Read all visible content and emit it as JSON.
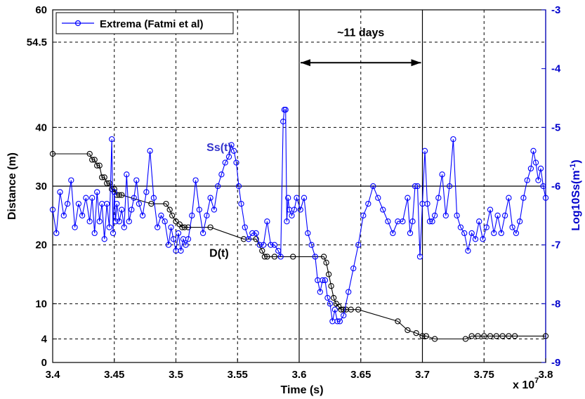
{
  "chart_data": {
    "type": "line",
    "xlabel": "Time (s)",
    "x_multiplier": "x 10",
    "x_multiplier_exp": "7",
    "ylabel": "Distance (m)",
    "y2label": "Log10Ss(m",
    "y2label_sup": "-1",
    "y2label_close": ")",
    "xlim": [
      3.4,
      3.8
    ],
    "ylim": [
      0,
      60
    ],
    "y2lim": [
      -9,
      -3
    ],
    "x_ticks": [
      "3.4",
      "3.45",
      "3.5",
      "3.55",
      "3.6",
      "3.65",
      "3.7",
      "3.75",
      "3.8"
    ],
    "y_ticks": [
      0,
      4,
      10,
      20,
      30,
      40,
      54.5,
      60
    ],
    "y_tick_labels": [
      "0",
      "4",
      "10",
      "20",
      "30",
      "40",
      "54.5",
      "60"
    ],
    "y2_ticks": [
      -9,
      -8,
      -7,
      -6,
      -5,
      -4,
      -3
    ],
    "y2_tick_labels": [
      "-9",
      "-8",
      "-7",
      "-6",
      "-5",
      "-4",
      "-3"
    ],
    "grid": true,
    "legend": {
      "position": "top-left",
      "entries": [
        "Extrema (Fatmi et al)"
      ]
    },
    "vertical_lines_x": [
      3.6,
      3.7
    ],
    "horizontal_line_y": 30,
    "annotations": {
      "interval_label": "~11 days",
      "interval_from": 3.6,
      "interval_to": 3.7,
      "interval_y": 51,
      "ss_label": "Ss(t)",
      "ss_label_at": [
        3.535,
        36
      ],
      "d_label": "D(t)",
      "d_label_at": [
        3.535,
        18
      ]
    },
    "colors": {
      "ss": "#0000ff",
      "d": "#000000",
      "arrow": "#000000"
    },
    "series": [
      {
        "name": "Extrema (Fatmi et al)",
        "axis": "right",
        "x": [
          3.4,
          3.403,
          3.406,
          3.409,
          3.412,
          3.415,
          3.418,
          3.421,
          3.424,
          3.427,
          3.43,
          3.432,
          3.434,
          3.436,
          3.438,
          3.44,
          3.442,
          3.444,
          3.446,
          3.448,
          3.449,
          3.45,
          3.451,
          3.452,
          3.454,
          3.456,
          3.458,
          3.46,
          3.462,
          3.464,
          3.466,
          3.468,
          3.47,
          3.473,
          3.476,
          3.479,
          3.482,
          3.485,
          3.488,
          3.491,
          3.494,
          3.496,
          3.498,
          3.5,
          3.502,
          3.504,
          3.506,
          3.508,
          3.51,
          3.513,
          3.516,
          3.519,
          3.522,
          3.525,
          3.528,
          3.531,
          3.534,
          3.537,
          3.54,
          3.543,
          3.545,
          3.547,
          3.549,
          3.551,
          3.553,
          3.556,
          3.559,
          3.562,
          3.565,
          3.568,
          3.571,
          3.574,
          3.577,
          3.58,
          3.583,
          3.585,
          3.587,
          3.588,
          3.589,
          3.59,
          3.591,
          3.592,
          3.594,
          3.596,
          3.598,
          3.601,
          3.604,
          3.607,
          3.61,
          3.613,
          3.615,
          3.617,
          3.619,
          3.621,
          3.623,
          3.625,
          3.627,
          3.629,
          3.631,
          3.633,
          3.636,
          3.64,
          3.644,
          3.648,
          3.652,
          3.656,
          3.66,
          3.664,
          3.668,
          3.672,
          3.676,
          3.68,
          3.684,
          3.688,
          3.69,
          3.692,
          3.694,
          3.696,
          3.698,
          3.7,
          3.702,
          3.704,
          3.706,
          3.708,
          3.71,
          3.713,
          3.716,
          3.719,
          3.722,
          3.725,
          3.728,
          3.731,
          3.734,
          3.737,
          3.74,
          3.743,
          3.746,
          3.749,
          3.752,
          3.755,
          3.758,
          3.761,
          3.764,
          3.767,
          3.77,
          3.773,
          3.776,
          3.779,
          3.782,
          3.785,
          3.788,
          3.79,
          3.792,
          3.794,
          3.796,
          3.798,
          3.8
        ],
        "y": [
          -6.4,
          -6.8,
          -6.1,
          -6.5,
          -6.3,
          -5.9,
          -6.7,
          -6.3,
          -6.5,
          -6.2,
          -6.6,
          -6.2,
          -6.8,
          -6.1,
          -6.6,
          -6.3,
          -6.9,
          -6.3,
          -6.7,
          -5.2,
          -6.8,
          -6.1,
          -6.6,
          -6.3,
          -6.6,
          -6.4,
          -6.7,
          -5.8,
          -6.6,
          -6.4,
          -6.2,
          -5.9,
          -6.3,
          -6.5,
          -6.1,
          -5.4,
          -6.2,
          -6.7,
          -6.5,
          -6.6,
          -7.0,
          -6.7,
          -6.9,
          -7.1,
          -6.8,
          -7.1,
          -6.9,
          -7.0,
          -6.9,
          -6.5,
          -5.9,
          -6.4,
          -6.8,
          -6.5,
          -6.2,
          -6.4,
          -6.0,
          -5.8,
          -5.6,
          -5.5,
          -5.3,
          -5.4,
          -5.6,
          -6.0,
          -6.3,
          -6.7,
          -6.9,
          -6.8,
          -6.8,
          -7.0,
          -7.0,
          -6.6,
          -7.0,
          -7.0,
          -7.1,
          -7.2,
          -4.9,
          -4.7,
          -4.7,
          -6.6,
          -6.2,
          -6.4,
          -6.5,
          -6.4,
          -6.2,
          -6.4,
          -6.2,
          -6.8,
          -7.0,
          -7.2,
          -7.6,
          -7.8,
          -7.6,
          -7.6,
          -7.9,
          -8.0,
          -8.3,
          -8.1,
          -8.3,
          -8.3,
          -8.2,
          -7.8,
          -7.4,
          -7.0,
          -6.5,
          -6.3,
          -6.0,
          -6.2,
          -6.4,
          -6.6,
          -6.8,
          -6.6,
          -6.6,
          -6.2,
          -6.8,
          -6.6,
          -6.0,
          -6.0,
          -7.2,
          -6.3,
          -5.4,
          -6.3,
          -6.6,
          -6.6,
          -6.5,
          -6.2,
          -5.8,
          -6.5,
          -6.0,
          -5.2,
          -6.5,
          -6.7,
          -6.8,
          -7.1,
          -6.8,
          -6.9,
          -6.6,
          -6.9,
          -6.7,
          -6.4,
          -6.8,
          -6.5,
          -6.8,
          -6.5,
          -6.2,
          -6.7,
          -6.8,
          -6.6,
          -6.2,
          -5.9,
          -5.7,
          -5.4,
          -5.6,
          -5.9,
          -5.7,
          -6.0,
          -6.2
        ]
      },
      {
        "name": "D(t)",
        "axis": "left",
        "x": [
          3.4,
          3.43,
          3.432,
          3.434,
          3.436,
          3.438,
          3.44,
          3.442,
          3.444,
          3.446,
          3.448,
          3.45,
          3.452,
          3.454,
          3.456,
          3.48,
          3.492,
          3.495,
          3.497,
          3.5,
          3.503,
          3.505,
          3.507,
          3.51,
          3.528,
          3.555,
          3.565,
          3.57,
          3.572,
          3.574,
          3.58,
          3.595,
          3.62,
          3.622,
          3.624,
          3.626,
          3.628,
          3.63,
          3.632,
          3.634,
          3.636,
          3.638,
          3.642,
          3.648,
          3.68,
          3.688,
          3.695,
          3.7,
          3.703,
          3.71,
          3.735,
          3.74,
          3.745,
          3.75,
          3.755,
          3.76,
          3.765,
          3.77,
          3.775,
          3.8
        ],
        "y": [
          35.5,
          35.5,
          34.5,
          34.5,
          33.5,
          33.5,
          31.5,
          31.5,
          30.5,
          30.5,
          29.5,
          29.5,
          28.5,
          28.5,
          28.5,
          27.0,
          27.0,
          26.0,
          25.0,
          24.0,
          23.5,
          23.0,
          23.0,
          23.0,
          23.0,
          21.0,
          21.0,
          19.0,
          18.0,
          18.0,
          18.0,
          18.0,
          18.0,
          17.0,
          15.0,
          13.0,
          11.0,
          10.0,
          9.5,
          9.0,
          9.0,
          9.0,
          9.0,
          9.0,
          7.0,
          5.5,
          5.0,
          4.5,
          4.5,
          4.0,
          4.0,
          4.5,
          4.5,
          4.5,
          4.5,
          4.5,
          4.5,
          4.5,
          4.5,
          4.5
        ]
      }
    ]
  }
}
